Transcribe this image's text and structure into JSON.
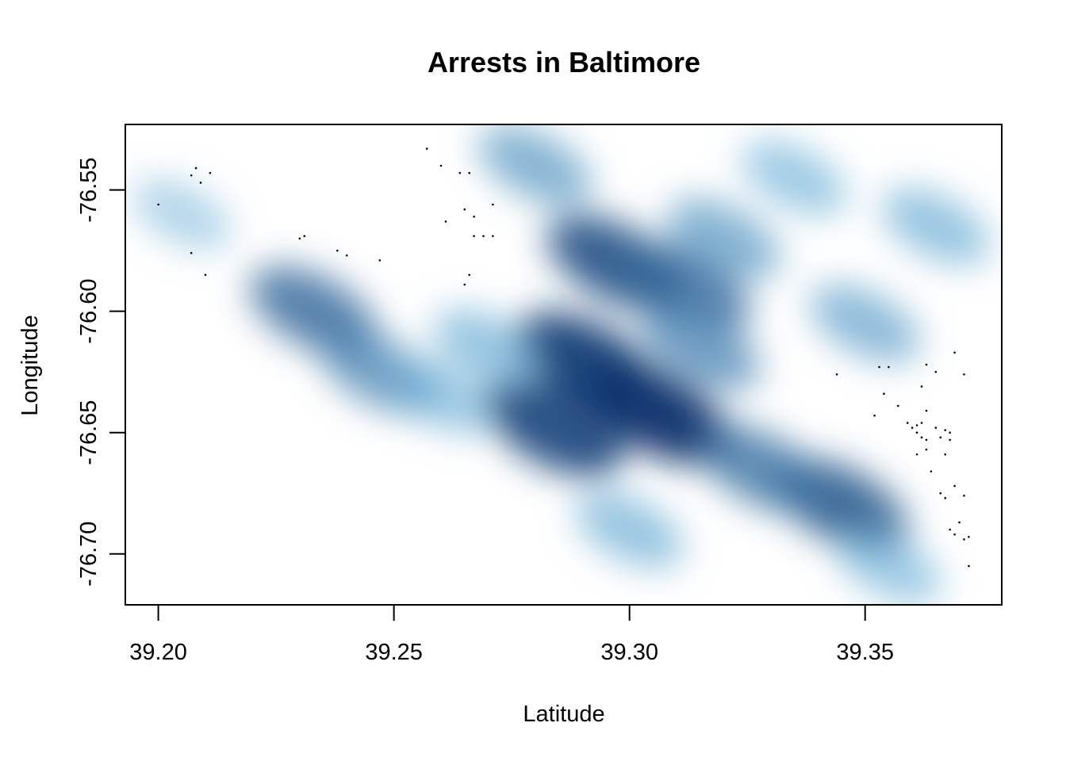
{
  "chart_data": {
    "type": "heatmap",
    "title": "Arrests in Baltimore",
    "xlabel": "Latitude",
    "ylabel": "Longitude",
    "xlim": [
      39.193,
      39.379
    ],
    "ylim": [
      -76.721,
      -76.523
    ],
    "xticks": [
      {
        "value": 39.2,
        "label": "39.20"
      },
      {
        "value": 39.25,
        "label": "39.25"
      },
      {
        "value": 39.3,
        "label": "39.30"
      },
      {
        "value": 39.35,
        "label": "39.35"
      }
    ],
    "yticks": [
      {
        "value": -76.55,
        "label": "-76.55"
      },
      {
        "value": -76.6,
        "label": "-76.60"
      },
      {
        "value": -76.65,
        "label": "-76.65"
      },
      {
        "value": -76.7,
        "label": "-76.70"
      }
    ],
    "color_scale": {
      "low": "#ffffff",
      "mid": "#6baed6",
      "high": "#08306b"
    },
    "density_hotspots": [
      {
        "x": 39.291,
        "y": -76.621,
        "intensity": 0.95
      },
      {
        "x": 39.306,
        "y": -76.642,
        "intensity": 1.0
      },
      {
        "x": 39.284,
        "y": -76.648,
        "intensity": 0.9
      },
      {
        "x": 39.297,
        "y": -76.58,
        "intensity": 0.85
      },
      {
        "x": 39.312,
        "y": -76.59,
        "intensity": 0.7
      },
      {
        "x": 39.345,
        "y": -76.68,
        "intensity": 0.8
      },
      {
        "x": 39.328,
        "y": -76.665,
        "intensity": 0.65
      },
      {
        "x": 39.233,
        "y": -76.6,
        "intensity": 0.7
      },
      {
        "x": 39.247,
        "y": -76.625,
        "intensity": 0.55
      },
      {
        "x": 39.28,
        "y": -76.54,
        "intensity": 0.45
      },
      {
        "x": 39.32,
        "y": -76.57,
        "intensity": 0.45
      },
      {
        "x": 39.35,
        "y": -76.605,
        "intensity": 0.4
      },
      {
        "x": 39.365,
        "y": -76.565,
        "intensity": 0.35
      },
      {
        "x": 39.205,
        "y": -76.56,
        "intensity": 0.2
      },
      {
        "x": 39.26,
        "y": -76.635,
        "intensity": 0.3
      },
      {
        "x": 39.3,
        "y": -76.69,
        "intensity": 0.35
      },
      {
        "x": 39.315,
        "y": -76.615,
        "intensity": 0.55
      },
      {
        "x": 39.335,
        "y": -76.545,
        "intensity": 0.3
      },
      {
        "x": 39.355,
        "y": -76.705,
        "intensity": 0.3
      },
      {
        "x": 39.27,
        "y": -76.615,
        "intensity": 0.35
      }
    ],
    "points": [
      {
        "x": 39.2,
        "y": -76.556
      },
      {
        "x": 39.207,
        "y": -76.544
      },
      {
        "x": 39.209,
        "y": -76.547
      },
      {
        "x": 39.211,
        "y": -76.543
      },
      {
        "x": 39.208,
        "y": -76.541
      },
      {
        "x": 39.207,
        "y": -76.576
      },
      {
        "x": 39.21,
        "y": -76.585
      },
      {
        "x": 39.23,
        "y": -76.57
      },
      {
        "x": 39.231,
        "y": -76.569
      },
      {
        "x": 39.238,
        "y": -76.575
      },
      {
        "x": 39.24,
        "y": -76.577
      },
      {
        "x": 39.247,
        "y": -76.579
      },
      {
        "x": 39.257,
        "y": -76.533
      },
      {
        "x": 39.26,
        "y": -76.54
      },
      {
        "x": 39.264,
        "y": -76.543
      },
      {
        "x": 39.266,
        "y": -76.543
      },
      {
        "x": 39.271,
        "y": -76.556
      },
      {
        "x": 39.265,
        "y": -76.558
      },
      {
        "x": 39.267,
        "y": -76.561
      },
      {
        "x": 39.261,
        "y": -76.563
      },
      {
        "x": 39.267,
        "y": -76.569
      },
      {
        "x": 39.269,
        "y": -76.569
      },
      {
        "x": 39.271,
        "y": -76.569
      },
      {
        "x": 39.266,
        "y": -76.585
      },
      {
        "x": 39.265,
        "y": -76.589
      },
      {
        "x": 39.344,
        "y": -76.626
      },
      {
        "x": 39.353,
        "y": -76.623
      },
      {
        "x": 39.355,
        "y": -76.623
      },
      {
        "x": 39.354,
        "y": -76.634
      },
      {
        "x": 39.357,
        "y": -76.639
      },
      {
        "x": 39.352,
        "y": -76.643
      },
      {
        "x": 39.363,
        "y": -76.622
      },
      {
        "x": 39.365,
        "y": -76.625
      },
      {
        "x": 39.369,
        "y": -76.617
      },
      {
        "x": 39.371,
        "y": -76.626
      },
      {
        "x": 39.362,
        "y": -76.631
      },
      {
        "x": 39.363,
        "y": -76.641
      },
      {
        "x": 39.359,
        "y": -76.646
      },
      {
        "x": 39.361,
        "y": -76.647
      },
      {
        "x": 39.362,
        "y": -76.646
      },
      {
        "x": 39.36,
        "y": -76.648
      },
      {
        "x": 39.361,
        "y": -76.65
      },
      {
        "x": 39.362,
        "y": -76.652
      },
      {
        "x": 39.363,
        "y": -76.653
      },
      {
        "x": 39.365,
        "y": -76.648
      },
      {
        "x": 39.367,
        "y": -76.649
      },
      {
        "x": 39.368,
        "y": -76.65
      },
      {
        "x": 39.366,
        "y": -76.652
      },
      {
        "x": 39.368,
        "y": -76.653
      },
      {
        "x": 39.361,
        "y": -76.659
      },
      {
        "x": 39.363,
        "y": -76.657
      },
      {
        "x": 39.367,
        "y": -76.659
      },
      {
        "x": 39.364,
        "y": -76.666
      },
      {
        "x": 39.369,
        "y": -76.672
      },
      {
        "x": 39.366,
        "y": -76.675
      },
      {
        "x": 39.367,
        "y": -76.677
      },
      {
        "x": 39.371,
        "y": -76.676
      },
      {
        "x": 39.37,
        "y": -76.687
      },
      {
        "x": 39.368,
        "y": -76.69
      },
      {
        "x": 39.369,
        "y": -76.692
      },
      {
        "x": 39.371,
        "y": -76.694
      },
      {
        "x": 39.372,
        "y": -76.693
      },
      {
        "x": 39.372,
        "y": -76.705
      }
    ]
  }
}
